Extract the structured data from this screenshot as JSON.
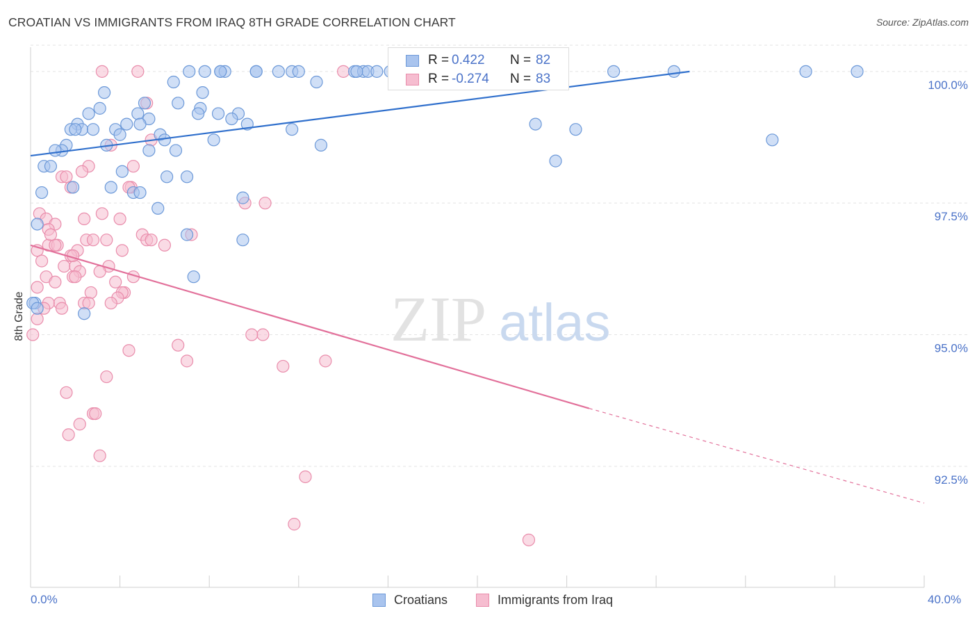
{
  "title": "CROATIAN VS IMMIGRANTS FROM IRAQ 8TH GRADE CORRELATION CHART",
  "source": "Source: ZipAtlas.com",
  "watermark": {
    "zip": "ZIP",
    "atlas": "atlas"
  },
  "colors": {
    "blue_fill": "#a9c4ee",
    "blue_stroke": "#6b98d8",
    "blue_line": "#2f6fcc",
    "pink_fill": "#f6bdd0",
    "pink_stroke": "#e98cab",
    "pink_line": "#e2709a",
    "tick_text": "#4a72c8",
    "grid": "#e3e3e3"
  },
  "legend_top": [
    {
      "r_label": "R =",
      "r_value": "0.422",
      "n_label": "N =",
      "n_value": "82",
      "series": "Croatians"
    },
    {
      "r_label": "R =",
      "r_value": "-0.274",
      "n_label": "N =",
      "n_value": "83",
      "series": "Immigrants from Iraq"
    }
  ],
  "chart_data": {
    "type": "scatter",
    "title": "CROATIAN VS IMMIGRANTS FROM IRAQ 8TH GRADE CORRELATION CHART",
    "xlabel": "",
    "ylabel": "8th Grade",
    "xlim": [
      0,
      40
    ],
    "ylim": [
      90.2,
      100.5
    ],
    "x_tick_labels": [
      "0.0%",
      "40.0%"
    ],
    "y_ticks": [
      92.5,
      95.0,
      97.5,
      100.0
    ],
    "y_tick_labels": [
      "92.5%",
      "95.0%",
      "97.5%",
      "100.0%"
    ],
    "grid": true,
    "legend_position": "bottom",
    "series": [
      {
        "name": "Croatians",
        "color": "#a9c4ee",
        "trend": {
          "x": [
            0,
            29.5
          ],
          "y": [
            98.4,
            100.0
          ]
        },
        "points": [
          {
            "x": 7.1,
            "y": 100.0
          },
          {
            "x": 7.8,
            "y": 100.0
          },
          {
            "x": 8.5,
            "y": 100.0
          },
          {
            "x": 8.7,
            "y": 100.0
          },
          {
            "x": 10.1,
            "y": 100.0
          },
          {
            "x": 11.1,
            "y": 100.0
          },
          {
            "x": 11.7,
            "y": 100.0
          },
          {
            "x": 12.0,
            "y": 100.0
          },
          {
            "x": 14.5,
            "y": 100.0
          },
          {
            "x": 14.9,
            "y": 100.0
          },
          {
            "x": 15.1,
            "y": 100.0
          },
          {
            "x": 15.5,
            "y": 100.0
          },
          {
            "x": 16.1,
            "y": 100.0
          },
          {
            "x": 17.9,
            "y": 100.0
          },
          {
            "x": 21.9,
            "y": 100.0
          },
          {
            "x": 26.1,
            "y": 100.0
          },
          {
            "x": 28.8,
            "y": 100.0
          },
          {
            "x": 34.7,
            "y": 100.0
          },
          {
            "x": 37.0,
            "y": 100.0
          },
          {
            "x": 8.5,
            "y": 100.0
          },
          {
            "x": 6.4,
            "y": 99.8
          },
          {
            "x": 12.8,
            "y": 99.8
          },
          {
            "x": 3.3,
            "y": 99.6
          },
          {
            "x": 7.7,
            "y": 99.6
          },
          {
            "x": 5.1,
            "y": 99.4
          },
          {
            "x": 6.6,
            "y": 99.4
          },
          {
            "x": 7.6,
            "y": 99.3
          },
          {
            "x": 3.1,
            "y": 99.3
          },
          {
            "x": 2.6,
            "y": 99.2
          },
          {
            "x": 4.8,
            "y": 99.2
          },
          {
            "x": 7.5,
            "y": 99.2
          },
          {
            "x": 8.4,
            "y": 99.2
          },
          {
            "x": 9.3,
            "y": 99.2
          },
          {
            "x": 5.3,
            "y": 99.1
          },
          {
            "x": 2.1,
            "y": 99.0
          },
          {
            "x": 9.0,
            "y": 99.1
          },
          {
            "x": 9.7,
            "y": 99.0
          },
          {
            "x": 4.3,
            "y": 99.0
          },
          {
            "x": 2.3,
            "y": 98.9
          },
          {
            "x": 1.8,
            "y": 98.9
          },
          {
            "x": 2.8,
            "y": 98.9
          },
          {
            "x": 3.8,
            "y": 98.9
          },
          {
            "x": 11.7,
            "y": 98.9
          },
          {
            "x": 22.6,
            "y": 99.0
          },
          {
            "x": 24.4,
            "y": 98.9
          },
          {
            "x": 4.0,
            "y": 98.8
          },
          {
            "x": 5.8,
            "y": 98.8
          },
          {
            "x": 6.0,
            "y": 98.7
          },
          {
            "x": 8.2,
            "y": 98.7
          },
          {
            "x": 33.2,
            "y": 98.7
          },
          {
            "x": 3.4,
            "y": 98.6
          },
          {
            "x": 1.6,
            "y": 98.6
          },
          {
            "x": 13.0,
            "y": 98.6
          },
          {
            "x": 5.3,
            "y": 98.5
          },
          {
            "x": 6.5,
            "y": 98.5
          },
          {
            "x": 1.4,
            "y": 98.5
          },
          {
            "x": 1.1,
            "y": 98.5
          },
          {
            "x": 23.5,
            "y": 98.3
          },
          {
            "x": 0.6,
            "y": 98.2
          },
          {
            "x": 0.9,
            "y": 98.2
          },
          {
            "x": 4.1,
            "y": 98.1
          },
          {
            "x": 6.1,
            "y": 98.0
          },
          {
            "x": 7.0,
            "y": 98.0
          },
          {
            "x": 1.9,
            "y": 97.8
          },
          {
            "x": 3.6,
            "y": 97.8
          },
          {
            "x": 4.6,
            "y": 97.7
          },
          {
            "x": 4.9,
            "y": 97.7
          },
          {
            "x": 0.5,
            "y": 97.7
          },
          {
            "x": 9.5,
            "y": 97.6
          },
          {
            "x": 5.7,
            "y": 97.4
          },
          {
            "x": 0.3,
            "y": 97.1
          },
          {
            "x": 7.0,
            "y": 96.9
          },
          {
            "x": 9.5,
            "y": 96.8
          },
          {
            "x": 7.3,
            "y": 96.1
          },
          {
            "x": 0.2,
            "y": 95.6
          },
          {
            "x": 2.4,
            "y": 95.4
          },
          {
            "x": 0.1,
            "y": 95.6
          },
          {
            "x": 0.3,
            "y": 95.5
          },
          {
            "x": 14.6,
            "y": 100.0
          },
          {
            "x": 10.1,
            "y": 100.0
          },
          {
            "x": 4.9,
            "y": 99.0
          },
          {
            "x": 2.0,
            "y": 98.9
          }
        ]
      },
      {
        "name": "Immigrants from Iraq",
        "color": "#f6bdd0",
        "trend": {
          "x": [
            0,
            25.0
          ],
          "y": [
            96.7,
            93.6
          ]
        },
        "trend_dashed": {
          "x": [
            25.0,
            40.0
          ],
          "y": [
            93.6,
            91.8
          ]
        },
        "points": [
          {
            "x": 3.2,
            "y": 100.0
          },
          {
            "x": 4.8,
            "y": 100.0
          },
          {
            "x": 14.0,
            "y": 100.0
          },
          {
            "x": 5.2,
            "y": 99.4
          },
          {
            "x": 5.4,
            "y": 98.7
          },
          {
            "x": 3.6,
            "y": 98.6
          },
          {
            "x": 4.6,
            "y": 98.2
          },
          {
            "x": 2.6,
            "y": 98.2
          },
          {
            "x": 2.3,
            "y": 98.1
          },
          {
            "x": 1.4,
            "y": 98.0
          },
          {
            "x": 1.6,
            "y": 98.0
          },
          {
            "x": 4.5,
            "y": 97.8
          },
          {
            "x": 4.4,
            "y": 97.8
          },
          {
            "x": 1.8,
            "y": 97.8
          },
          {
            "x": 9.6,
            "y": 97.5
          },
          {
            "x": 10.5,
            "y": 97.5
          },
          {
            "x": 3.2,
            "y": 97.3
          },
          {
            "x": 0.4,
            "y": 97.3
          },
          {
            "x": 0.7,
            "y": 97.2
          },
          {
            "x": 4.0,
            "y": 97.2
          },
          {
            "x": 2.4,
            "y": 97.2
          },
          {
            "x": 1.1,
            "y": 97.1
          },
          {
            "x": 0.8,
            "y": 97.0
          },
          {
            "x": 5.0,
            "y": 96.9
          },
          {
            "x": 7.2,
            "y": 96.9
          },
          {
            "x": 2.5,
            "y": 96.8
          },
          {
            "x": 2.8,
            "y": 96.8
          },
          {
            "x": 3.4,
            "y": 96.8
          },
          {
            "x": 5.2,
            "y": 96.8
          },
          {
            "x": 6.0,
            "y": 96.7
          },
          {
            "x": 0.8,
            "y": 96.7
          },
          {
            "x": 1.2,
            "y": 96.7
          },
          {
            "x": 1.1,
            "y": 96.7
          },
          {
            "x": 4.1,
            "y": 96.6
          },
          {
            "x": 0.3,
            "y": 96.6
          },
          {
            "x": 2.1,
            "y": 96.6
          },
          {
            "x": 1.8,
            "y": 96.5
          },
          {
            "x": 0.5,
            "y": 96.4
          },
          {
            "x": 1.5,
            "y": 96.3
          },
          {
            "x": 2.0,
            "y": 96.3
          },
          {
            "x": 3.5,
            "y": 96.3
          },
          {
            "x": 2.2,
            "y": 96.2
          },
          {
            "x": 3.1,
            "y": 96.2
          },
          {
            "x": 1.9,
            "y": 96.1
          },
          {
            "x": 0.7,
            "y": 96.1
          },
          {
            "x": 4.6,
            "y": 96.1
          },
          {
            "x": 1.1,
            "y": 96.0
          },
          {
            "x": 3.8,
            "y": 96.0
          },
          {
            "x": 0.3,
            "y": 95.9
          },
          {
            "x": 4.2,
            "y": 95.8
          },
          {
            "x": 2.7,
            "y": 95.8
          },
          {
            "x": 4.1,
            "y": 95.8
          },
          {
            "x": 3.9,
            "y": 95.7
          },
          {
            "x": 1.3,
            "y": 95.6
          },
          {
            "x": 0.8,
            "y": 95.6
          },
          {
            "x": 2.4,
            "y": 95.6
          },
          {
            "x": 2.6,
            "y": 95.6
          },
          {
            "x": 3.6,
            "y": 95.6
          },
          {
            "x": 1.4,
            "y": 95.5
          },
          {
            "x": 0.6,
            "y": 95.5
          },
          {
            "x": 0.3,
            "y": 95.3
          },
          {
            "x": 0.1,
            "y": 95.0
          },
          {
            "x": 10.4,
            "y": 95.0
          },
          {
            "x": 9.9,
            "y": 95.0
          },
          {
            "x": 6.6,
            "y": 94.8
          },
          {
            "x": 4.4,
            "y": 94.7
          },
          {
            "x": 13.2,
            "y": 94.5
          },
          {
            "x": 7.0,
            "y": 94.5
          },
          {
            "x": 11.3,
            "y": 94.4
          },
          {
            "x": 3.4,
            "y": 94.2
          },
          {
            "x": 1.6,
            "y": 93.9
          },
          {
            "x": 2.8,
            "y": 93.5
          },
          {
            "x": 2.9,
            "y": 93.5
          },
          {
            "x": 2.2,
            "y": 93.3
          },
          {
            "x": 1.7,
            "y": 93.1
          },
          {
            "x": 3.1,
            "y": 92.7
          },
          {
            "x": 12.3,
            "y": 92.3
          },
          {
            "x": 11.8,
            "y": 91.4
          },
          {
            "x": 22.3,
            "y": 91.1
          },
          {
            "x": 5.4,
            "y": 96.8
          },
          {
            "x": 1.9,
            "y": 96.5
          },
          {
            "x": 2.0,
            "y": 96.1
          },
          {
            "x": 0.9,
            "y": 96.9
          }
        ]
      }
    ]
  }
}
